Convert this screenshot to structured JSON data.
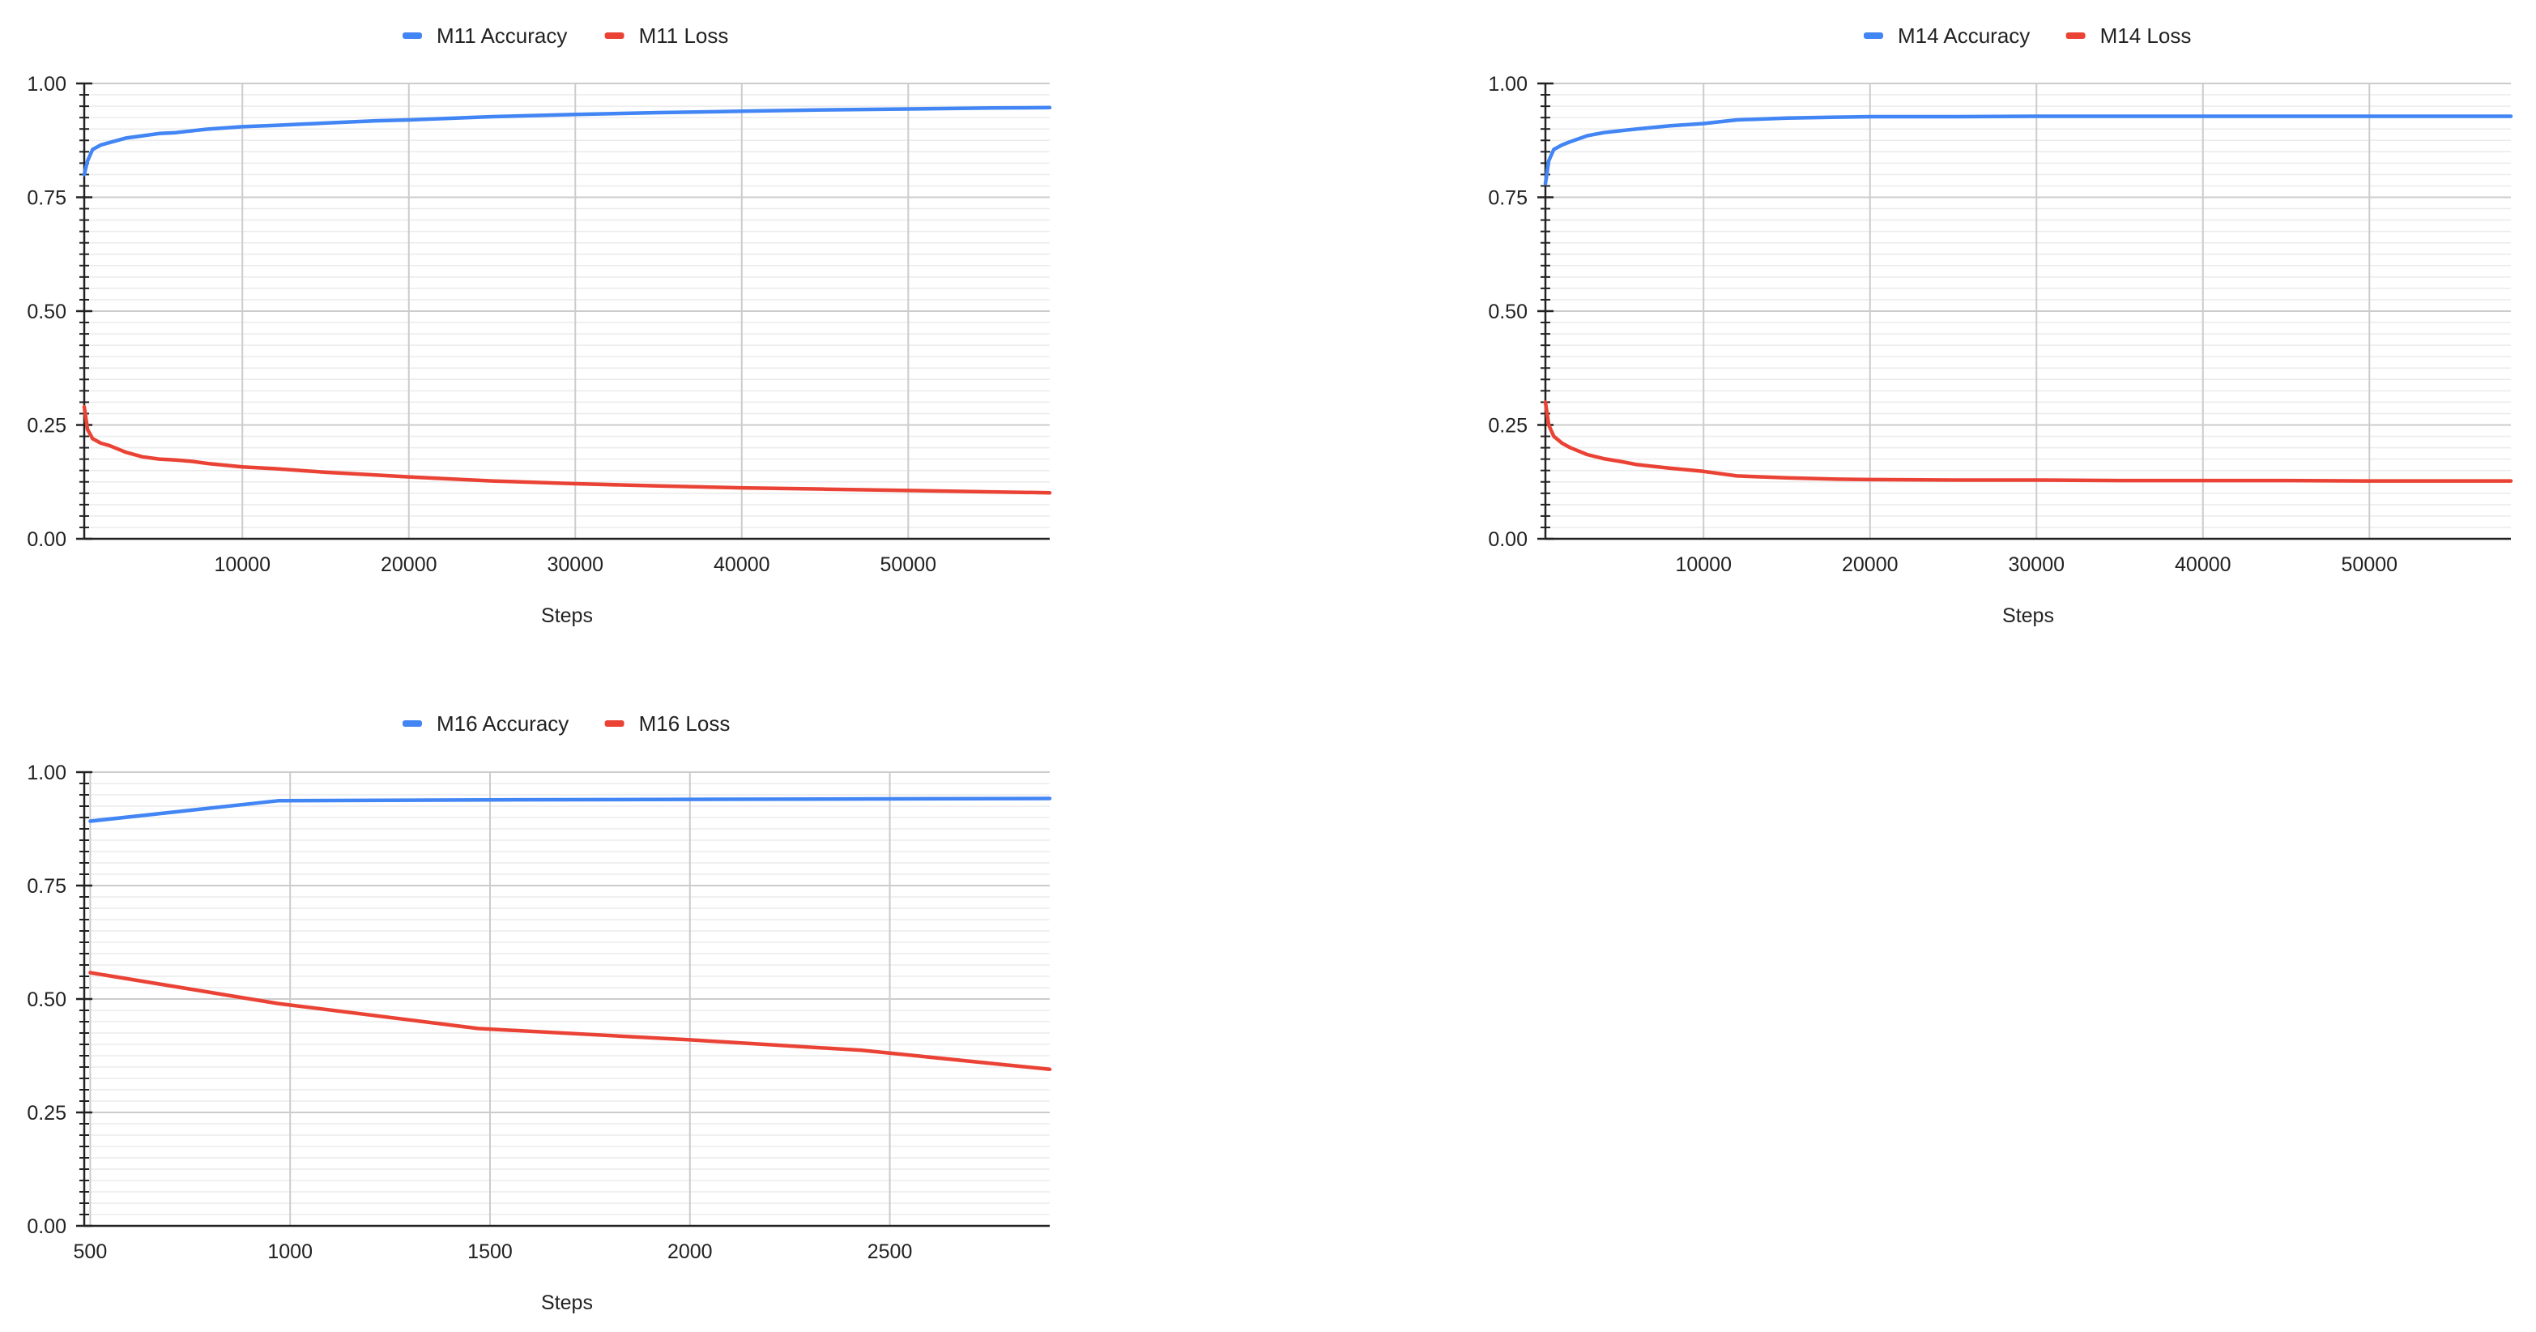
{
  "colors": {
    "accuracy": "#4285f4",
    "loss": "#ea4335",
    "grid_major": "#cccccc",
    "grid_minor": "#ebebeb",
    "axis": "#222222"
  },
  "chart_data": [
    {
      "id": "m11",
      "type": "line",
      "title": "",
      "xlabel": "Steps",
      "ylabel": "",
      "xlim": [
        500,
        58500
      ],
      "ylim": [
        0,
        1
      ],
      "xticks": [
        10000,
        20000,
        30000,
        40000,
        50000
      ],
      "xtick_labels": [
        "10000",
        "20000",
        "30000",
        "40000",
        "50000"
      ],
      "yticks": [
        0,
        0.25,
        0.5,
        0.75,
        1
      ],
      "ytick_labels": [
        "0.00",
        "0.25",
        "0.50",
        "0.75",
        "1.00"
      ],
      "grid": true,
      "legend_position": "top",
      "series": [
        {
          "name": "M11 Accuracy",
          "color_key": "accuracy",
          "x": [
            500,
            700,
            1000,
            1500,
            2000,
            3000,
            4000,
            5000,
            6000,
            8000,
            10000,
            12000,
            15000,
            18000,
            20000,
            25000,
            30000,
            35000,
            40000,
            45000,
            50000,
            55000,
            58500
          ],
          "y": [
            0.8,
            0.83,
            0.855,
            0.865,
            0.87,
            0.88,
            0.885,
            0.89,
            0.892,
            0.9,
            0.905,
            0.908,
            0.913,
            0.918,
            0.92,
            0.927,
            0.932,
            0.936,
            0.939,
            0.942,
            0.944,
            0.946,
            0.947
          ]
        },
        {
          "name": "M11 Loss",
          "color_key": "loss",
          "x": [
            500,
            700,
            1000,
            1500,
            2000,
            3000,
            4000,
            5000,
            6000,
            7000,
            8000,
            10000,
            12000,
            15000,
            18000,
            20000,
            25000,
            30000,
            35000,
            40000,
            45000,
            50000,
            55000,
            58500
          ],
          "y": [
            0.29,
            0.24,
            0.22,
            0.21,
            0.205,
            0.19,
            0.18,
            0.175,
            0.173,
            0.17,
            0.165,
            0.158,
            0.154,
            0.146,
            0.14,
            0.136,
            0.127,
            0.121,
            0.116,
            0.112,
            0.109,
            0.106,
            0.103,
            0.101
          ]
        }
      ]
    },
    {
      "id": "m14",
      "type": "line",
      "title": "",
      "xlabel": "Steps",
      "ylabel": "",
      "xlim": [
        500,
        58500
      ],
      "ylim": [
        0,
        1
      ],
      "xticks": [
        10000,
        20000,
        30000,
        40000,
        50000
      ],
      "xtick_labels": [
        "10000",
        "20000",
        "30000",
        "40000",
        "50000"
      ],
      "yticks": [
        0,
        0.25,
        0.5,
        0.75,
        1
      ],
      "ytick_labels": [
        "0.00",
        "0.25",
        "0.50",
        "0.75",
        "1.00"
      ],
      "grid": true,
      "legend_position": "top",
      "series": [
        {
          "name": "M14 Accuracy",
          "color_key": "accuracy",
          "x": [
            500,
            700,
            1000,
            1500,
            2000,
            3000,
            4000,
            5000,
            6000,
            8000,
            10000,
            12000,
            15000,
            18000,
            20000,
            25000,
            30000,
            35000,
            40000,
            45000,
            50000,
            55000,
            58500
          ],
          "y": [
            0.78,
            0.83,
            0.855,
            0.865,
            0.872,
            0.885,
            0.892,
            0.896,
            0.9,
            0.907,
            0.912,
            0.92,
            0.924,
            0.926,
            0.927,
            0.927,
            0.928,
            0.928,
            0.928,
            0.928,
            0.928,
            0.928,
            0.928
          ]
        },
        {
          "name": "M14 Loss",
          "color_key": "loss",
          "x": [
            500,
            700,
            1000,
            1500,
            2000,
            3000,
            4000,
            5000,
            6000,
            8000,
            10000,
            12000,
            15000,
            18000,
            20000,
            25000,
            30000,
            35000,
            40000,
            45000,
            50000,
            55000,
            58500
          ],
          "y": [
            0.3,
            0.25,
            0.225,
            0.21,
            0.2,
            0.185,
            0.176,
            0.17,
            0.163,
            0.155,
            0.148,
            0.138,
            0.134,
            0.131,
            0.13,
            0.129,
            0.129,
            0.128,
            0.128,
            0.128,
            0.127,
            0.127,
            0.127
          ]
        }
      ]
    },
    {
      "id": "m16",
      "type": "line",
      "title": "",
      "xlabel": "Steps",
      "ylabel": "",
      "xlim": [
        485,
        2900
      ],
      "ylim": [
        0,
        1
      ],
      "xticks": [
        500,
        1000,
        1500,
        2000,
        2500
      ],
      "xtick_labels": [
        "500",
        "1000",
        "1500",
        "2000",
        "2500"
      ],
      "yticks": [
        0,
        0.25,
        0.5,
        0.75,
        1
      ],
      "ytick_labels": [
        "0.00",
        "0.25",
        "0.50",
        "0.75",
        "1.00"
      ],
      "grid": true,
      "legend_position": "top",
      "series": [
        {
          "name": "M16 Accuracy",
          "color_key": "accuracy",
          "x": [
            500,
            970,
            1500,
            2000,
            2500,
            2900
          ],
          "y": [
            0.892,
            0.937,
            0.939,
            0.94,
            0.941,
            0.942
          ]
        },
        {
          "name": "M16 Loss",
          "color_key": "loss",
          "x": [
            500,
            970,
            1470,
            2000,
            2430,
            2900
          ],
          "y": [
            0.558,
            0.49,
            0.435,
            0.41,
            0.387,
            0.345
          ]
        }
      ]
    }
  ]
}
